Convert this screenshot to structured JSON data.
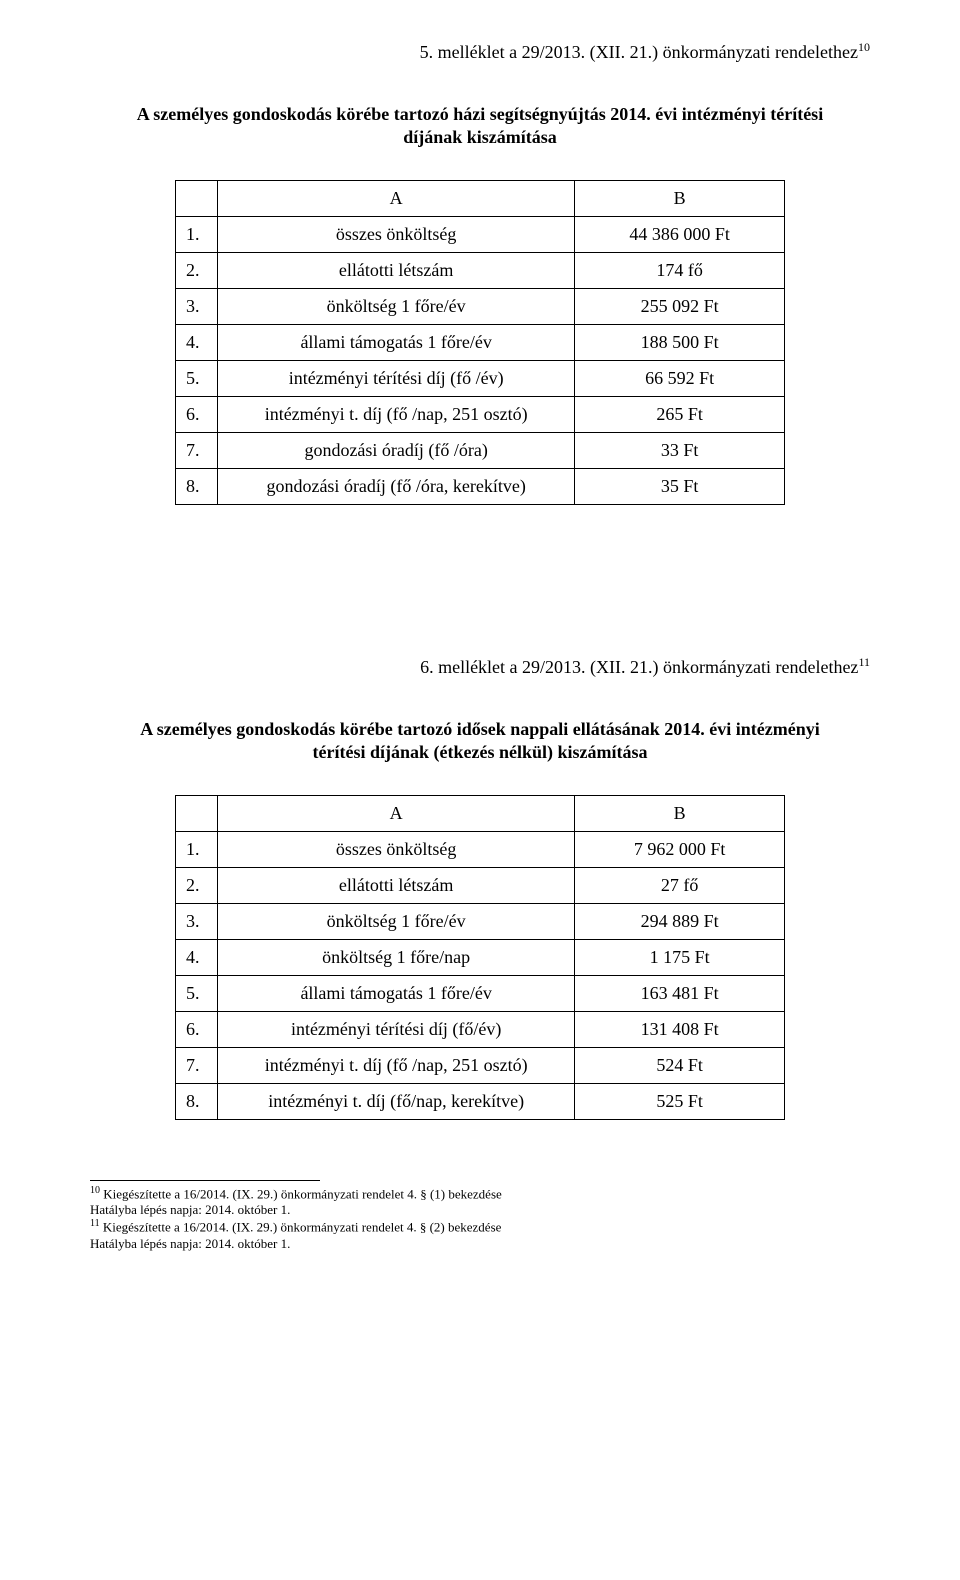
{
  "header1": {
    "text": "5. melléklet a 29/2013. (XII. 21.) önkormányzati rendelethez",
    "fn": "10"
  },
  "title1": "A személyes gondoskodás körébe tartozó házi segítségnyújtás 2014. évi intézményi térítési díjának kiszámítása",
  "table1": {
    "colA": "A",
    "colB": "B",
    "rows": [
      {
        "num": "1.",
        "label": "összes önköltség",
        "val": "44 386 000 Ft"
      },
      {
        "num": "2.",
        "label": "ellátotti létszám",
        "val": "174 fő"
      },
      {
        "num": "3.",
        "label": "önköltség 1 főre/év",
        "val": "255 092 Ft"
      },
      {
        "num": "4.",
        "label": "állami támogatás 1 főre/év",
        "val": "188 500 Ft"
      },
      {
        "num": "5.",
        "label": "intézményi térítési díj (fő /év)",
        "val": "66 592 Ft"
      },
      {
        "num": "6.",
        "label": "intézményi t. díj (fő /nap, 251 osztó)",
        "val": "265 Ft"
      },
      {
        "num": "7.",
        "label": "gondozási óradíj (fő /óra)",
        "val": "33 Ft"
      },
      {
        "num": "8.",
        "label": "gondozási óradíj (fő /óra, kerekítve)",
        "val": "35 Ft"
      }
    ]
  },
  "header2": {
    "text": "6. melléklet a 29/2013. (XII. 21.) önkormányzati rendelethez",
    "fn": "11"
  },
  "title2": "A személyes gondoskodás körébe tartozó idősek nappali ellátásának 2014. évi intézményi térítési díjának (étkezés nélkül) kiszámítása",
  "table2": {
    "colA": "A",
    "colB": "B",
    "rows": [
      {
        "num": "1.",
        "label": "összes önköltség",
        "val": "7 962 000 Ft"
      },
      {
        "num": "2.",
        "label": "ellátotti létszám",
        "val": "27 fő"
      },
      {
        "num": "3.",
        "label": "önköltség 1 főre/év",
        "val": "294 889 Ft"
      },
      {
        "num": "4.",
        "label": "önköltség 1 főre/nap",
        "val": "1 175 Ft"
      },
      {
        "num": "5.",
        "label": "állami támogatás 1 főre/év",
        "val": "163 481 Ft"
      },
      {
        "num": "6.",
        "label": "intézményi térítési díj (fő/év)",
        "val": "131 408 Ft"
      },
      {
        "num": "7.",
        "label": "intézményi t. díj (fő /nap, 251 osztó)",
        "val": "524 Ft"
      },
      {
        "num": "8.",
        "label": "intézményi t. díj (fő/nap, kerekítve)",
        "val": "525 Ft"
      }
    ]
  },
  "footnotes": [
    {
      "num": "10",
      "line1": " Kiegészítette a 16/2014. (IX. 29.) önkormányzati rendelet 4. § (1) bekezdése",
      "line2": "  Hatályba lépés napja: 2014. október 1."
    },
    {
      "num": "11",
      "line1": " Kiegészítette a 16/2014. (IX. 29.) önkormányzati rendelet 4. § (2) bekezdése",
      "line2": "  Hatályba lépés napja: 2014. október 1."
    }
  ]
}
